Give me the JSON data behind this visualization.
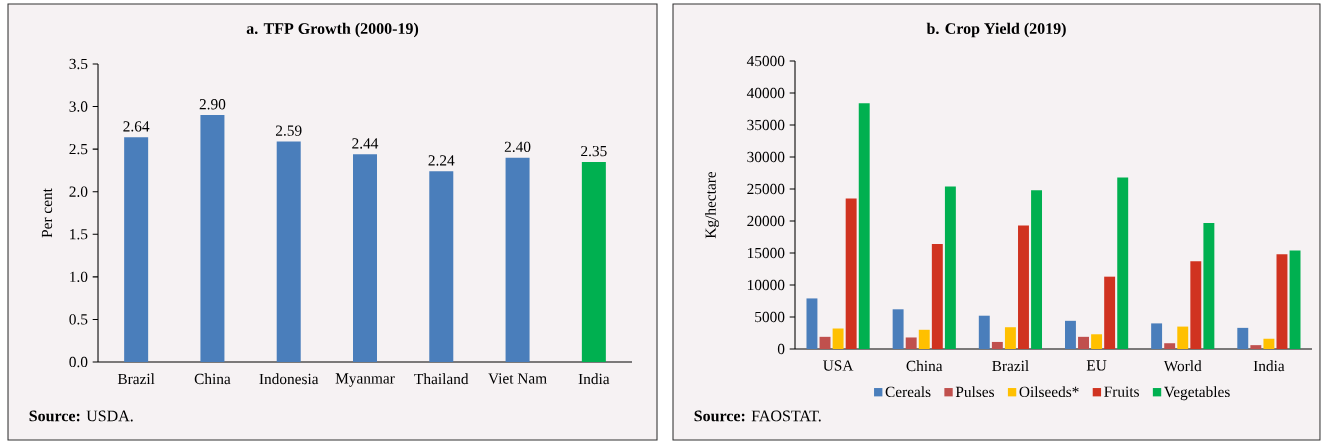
{
  "chart_data": [
    {
      "type": "bar",
      "title": "a. TFP Growth (2000-19)",
      "ylabel": "Per cent",
      "categories": [
        "Brazil",
        "China",
        "Indonesia",
        "Myanmar",
        "Thailand",
        "Viet Nam",
        "India"
      ],
      "values": [
        2.64,
        2.9,
        2.59,
        2.44,
        2.24,
        2.4,
        2.35
      ],
      "value_labels": [
        "2.64",
        "2.90",
        "2.59",
        "2.44",
        "2.24",
        "2.40",
        "2.35"
      ],
      "colors": [
        "#4a7ebb",
        "#4a7ebb",
        "#4a7ebb",
        "#4a7ebb",
        "#4a7ebb",
        "#4a7ebb",
        "#00b050"
      ],
      "ylim": [
        0,
        3.5
      ],
      "yticks": [
        {
          "value": 0,
          "label": "0.0"
        },
        0.5,
        {
          "value": 1,
          "label": "1.0"
        },
        1.5,
        {
          "value": 2,
          "label": "2.0"
        },
        2.5,
        {
          "value": 3,
          "label": "3.0"
        },
        3.5
      ],
      "annotations": [
        "**Source:** USDA."
      ]
    },
    {
      "type": "bar",
      "title": "b. Crop Yield (2019)",
      "ylabel": "Kg/hectare",
      "categories": [
        "USA",
        "China",
        "Brazil",
        "EU",
        "World",
        "India"
      ],
      "series": [
        {
          "name": "Cereals",
          "color": "#4a7ebb",
          "values": [
            7900,
            6200,
            5200,
            4400,
            4000,
            3300
          ]
        },
        {
          "name": "Pulses",
          "color": "#c0504d",
          "values": [
            1900,
            1800,
            1100,
            1900,
            900,
            600
          ]
        },
        {
          "name": "Oilseeds*",
          "color": "#ffc000",
          "values": [
            3200,
            3000,
            3400,
            2300,
            3500,
            1600
          ]
        },
        {
          "name": "Fruits",
          "color": "#d03320",
          "values": [
            23500,
            16400,
            19300,
            11300,
            13700,
            14800
          ]
        },
        {
          "name": "Vegetables",
          "color": "#00b050",
          "values": [
            38400,
            25400,
            24800,
            26800,
            19700,
            15400
          ]
        }
      ],
      "ylim": [
        0,
        45000
      ],
      "yticks": [
        0,
        5000,
        10000,
        15000,
        20000,
        25000,
        30000,
        35000,
        40000,
        45000
      ],
      "legend": "bottom",
      "annotations": [
        "**Source:** FAOSTAT."
      ]
    }
  ]
}
